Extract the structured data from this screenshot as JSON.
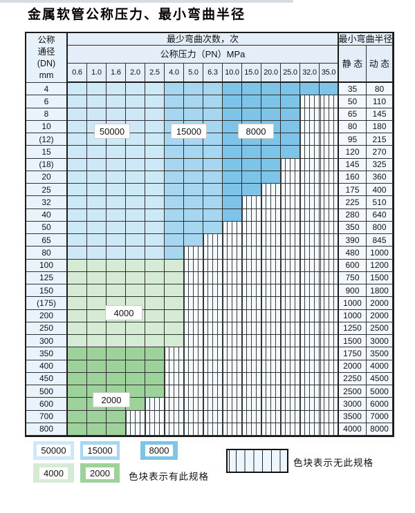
{
  "page": {
    "title": "金属软管公称压力、最小弯曲半径"
  },
  "table": {
    "dn_header_lines": [
      "公称",
      "通径",
      "(DN)",
      "mm"
    ],
    "bend_times_header": "最少弯曲次数，次",
    "pressure_header": "公称压力（PN）MPa",
    "radius_header": "最小弯曲半径",
    "static_header": "静 态",
    "dynamic_header": "动 态",
    "pressure_columns": [
      "0.6",
      "1.0",
      "1.6",
      "2.0",
      "2.5",
      "4.0",
      "5.0",
      "6.3",
      "10.0",
      "15.0",
      "20.0",
      "25.0",
      "32.0",
      "35.0"
    ],
    "rows": [
      {
        "dn": "4",
        "cols": 14,
        "zone": "blue",
        "static_radius": "35",
        "dynamic_radius": "80"
      },
      {
        "dn": "6",
        "cols": 12,
        "zone": "blue",
        "static_radius": "50",
        "dynamic_radius": "110"
      },
      {
        "dn": "8",
        "cols": 12,
        "zone": "blue",
        "static_radius": "65",
        "dynamic_radius": "145"
      },
      {
        "dn": "10",
        "cols": 12,
        "zone": "blue",
        "static_radius": "80",
        "dynamic_radius": "180"
      },
      {
        "dn": "(12)",
        "cols": 12,
        "zone": "blue",
        "static_radius": "95",
        "dynamic_radius": "215"
      },
      {
        "dn": "15",
        "cols": 12,
        "zone": "blue",
        "static_radius": "120",
        "dynamic_radius": "270"
      },
      {
        "dn": "(18)",
        "cols": 11,
        "zone": "blue",
        "static_radius": "145",
        "dynamic_radius": "325"
      },
      {
        "dn": "20",
        "cols": 11,
        "zone": "blue",
        "static_radius": "160",
        "dynamic_radius": "360"
      },
      {
        "dn": "25",
        "cols": 10,
        "zone": "blue",
        "static_radius": "175",
        "dynamic_radius": "400"
      },
      {
        "dn": "32",
        "cols": 9,
        "zone": "blue",
        "static_radius": "225",
        "dynamic_radius": "510"
      },
      {
        "dn": "40",
        "cols": 9,
        "zone": "blue",
        "static_radius": "280",
        "dynamic_radius": "640"
      },
      {
        "dn": "50",
        "cols": 8,
        "zone": "blue",
        "static_radius": "350",
        "dynamic_radius": "800"
      },
      {
        "dn": "65",
        "cols": 7,
        "zone": "blue",
        "static_radius": "390",
        "dynamic_radius": "845"
      },
      {
        "dn": "80",
        "cols": 6,
        "zone": "blue",
        "static_radius": "480",
        "dynamic_radius": "1000"
      },
      {
        "dn": "100",
        "cols": 6,
        "zone": "green4000",
        "static_radius": "600",
        "dynamic_radius": "1200"
      },
      {
        "dn": "125",
        "cols": 6,
        "zone": "green4000",
        "static_radius": "750",
        "dynamic_radius": "1500"
      },
      {
        "dn": "150",
        "cols": 6,
        "zone": "green4000",
        "static_radius": "900",
        "dynamic_radius": "1800"
      },
      {
        "dn": "(175)",
        "cols": 6,
        "zone": "green4000",
        "static_radius": "1000",
        "dynamic_radius": "2000"
      },
      {
        "dn": "200",
        "cols": 6,
        "zone": "green4000",
        "static_radius": "1000",
        "dynamic_radius": "2000"
      },
      {
        "dn": "250",
        "cols": 6,
        "zone": "green4000",
        "static_radius": "1250",
        "dynamic_radius": "2500"
      },
      {
        "dn": "300",
        "cols": 6,
        "zone": "green4000",
        "static_radius": "1500",
        "dynamic_radius": "3000"
      },
      {
        "dn": "350",
        "cols": 5,
        "zone": "green2000",
        "static_radius": "1750",
        "dynamic_radius": "3500"
      },
      {
        "dn": "400",
        "cols": 5,
        "zone": "green2000",
        "static_radius": "2000",
        "dynamic_radius": "4000"
      },
      {
        "dn": "450",
        "cols": 5,
        "zone": "green2000",
        "static_radius": "2250",
        "dynamic_radius": "4500"
      },
      {
        "dn": "500",
        "cols": 5,
        "zone": "green2000",
        "static_radius": "2500",
        "dynamic_radius": "5000"
      },
      {
        "dn": "600",
        "cols": 4,
        "zone": "green2000",
        "static_radius": "3000",
        "dynamic_radius": "6000"
      },
      {
        "dn": "700",
        "cols": 3,
        "zone": "green2000",
        "static_radius": "3500",
        "dynamic_radius": "7000"
      },
      {
        "dn": "800",
        "cols": 3,
        "zone": "green2000",
        "static_radius": "4000",
        "dynamic_radius": "8000"
      }
    ],
    "overlay_labels": {
      "l50000": "50000",
      "l15000": "15000",
      "l8000": "8000",
      "l4000": "4000",
      "l2000": "2000"
    }
  },
  "legend": {
    "swatches": [
      {
        "label": "50000",
        "color_key": "c50000"
      },
      {
        "label": "15000",
        "color_key": "c15000"
      },
      {
        "label": "8000",
        "color_key": "c8000"
      },
      {
        "label": "4000",
        "color_key": "c4000"
      },
      {
        "label": "2000",
        "color_key": "c2000"
      }
    ],
    "available_note": "色块表示有此规格",
    "unavailable_note": "色块表示无此规格"
  },
  "colors": {
    "c50000": "#cde8f6",
    "c15000": "#a6d6f0",
    "c8000": "#7ec3e8",
    "c4000": "#d6ebd3",
    "c2000": "#9dd29b",
    "header_bg": "#e3eef9",
    "dn_column_bg": "#e9f3fb",
    "value_bg": "#f2f8fd",
    "hatch_bg": "#f4fafd",
    "grid_line": "#2e2e2e"
  }
}
